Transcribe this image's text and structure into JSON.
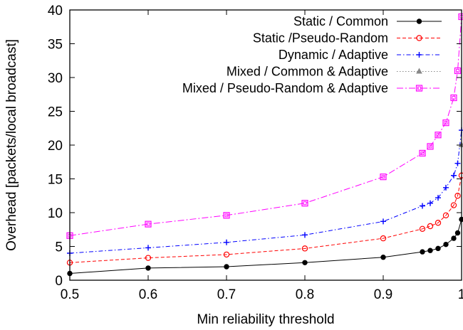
{
  "chart_data": {
    "type": "line",
    "title": "",
    "xlabel": "Min reliability threshold",
    "ylabel": "Overhead [packets/local broadcast]",
    "xlim": [
      0.5,
      1.0
    ],
    "ylim": [
      0,
      40
    ],
    "x_ticks": [
      0.5,
      0.6,
      0.7,
      0.8,
      0.9,
      1.0
    ],
    "x_tick_labels": [
      "0.5",
      "0.6",
      "0.7",
      "0.8",
      "0.9",
      "1"
    ],
    "y_ticks": [
      0,
      5,
      10,
      15,
      20,
      25,
      30,
      35,
      40
    ],
    "y_tick_labels": [
      "0",
      "5",
      "10",
      "15",
      "20",
      "25",
      "30",
      "35",
      "40"
    ],
    "grid": false,
    "legend_position": "top-right",
    "x": [
      0.5,
      0.6,
      0.7,
      0.8,
      0.9,
      0.95,
      0.96,
      0.97,
      0.98,
      0.99,
      0.995,
      1.0
    ],
    "series": [
      {
        "name": "Static / Common",
        "color": "#000000",
        "dash": "solid",
        "marker": "filled-circle",
        "values": [
          1.0,
          1.8,
          2.0,
          2.6,
          3.4,
          4.2,
          4.4,
          4.7,
          5.3,
          6.2,
          7.0,
          9.0
        ]
      },
      {
        "name": "Static /Pseudo-Random",
        "color": "#ff0000",
        "dash": "dashed",
        "marker": "open-circle",
        "values": [
          2.6,
          3.3,
          3.8,
          4.7,
          6.2,
          7.6,
          8.0,
          8.5,
          9.6,
          11.1,
          12.5,
          15.5
        ]
      },
      {
        "name": "Dynamic / Adaptive",
        "color": "#0000ff",
        "dash": "dash-dot",
        "marker": "plus",
        "values": [
          4.0,
          4.8,
          5.6,
          6.7,
          8.7,
          11.0,
          11.4,
          12.2,
          13.7,
          15.5,
          17.3,
          22.2
        ]
      },
      {
        "name": "Mixed / Common & Adaptive",
        "color": "#888888",
        "dash": "dotted",
        "marker": "triangle",
        "values": [
          null,
          null,
          null,
          null,
          null,
          null,
          null,
          null,
          null,
          null,
          null,
          20.0
        ]
      },
      {
        "name": "Mixed / Pseudo-Random & Adaptive",
        "color": "#ff00ff",
        "dash": "long-dash-dot",
        "marker": "open-square",
        "values": [
          6.6,
          8.3,
          9.6,
          11.4,
          15.3,
          18.8,
          19.8,
          21.5,
          23.3,
          27.0,
          31.0,
          39.0
        ]
      }
    ]
  }
}
